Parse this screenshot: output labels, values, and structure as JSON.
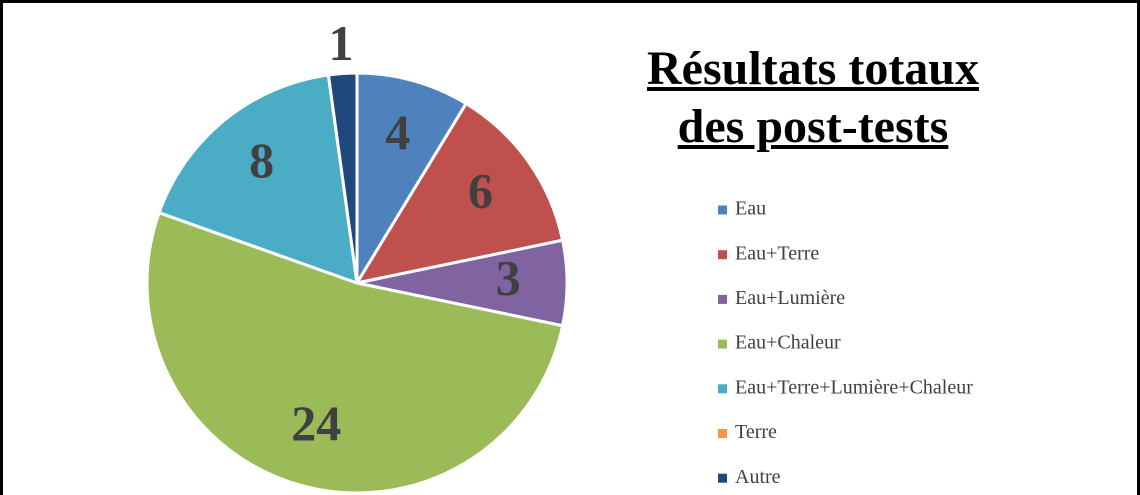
{
  "chart_data": {
    "type": "pie",
    "title": "Résultats totaux des post-tests",
    "categories": [
      "Eau",
      "Eau+Terre",
      "Eau+Lumière",
      "Eau+Chaleur",
      "Eau+Terre+Lumière+Chaleur",
      "Terre",
      "Autre"
    ],
    "values": [
      4,
      6,
      3,
      24,
      8,
      0,
      1
    ],
    "colors": [
      "#4f81bd",
      "#c0504d",
      "#8064a2",
      "#9bbb59",
      "#4bacc6",
      "#f79646",
      "#1f497d"
    ],
    "legend": "right"
  }
}
